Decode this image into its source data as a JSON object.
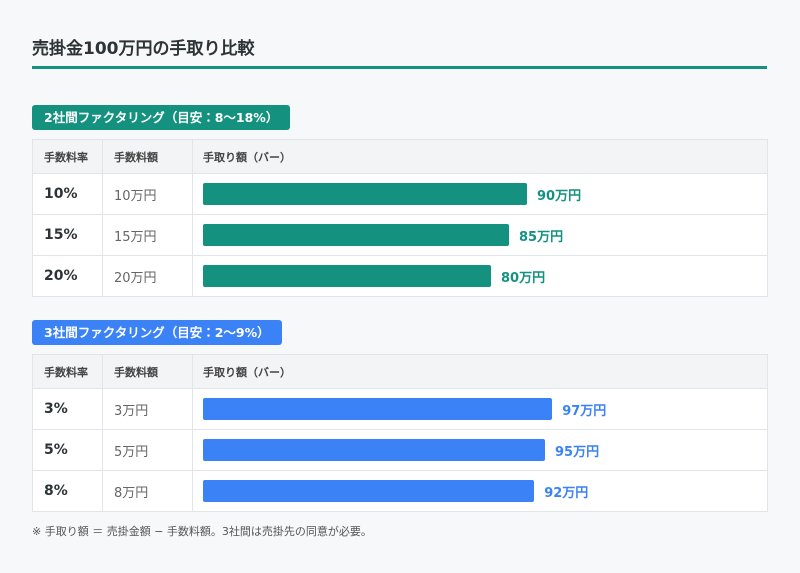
{
  "title": "売掛金100万円の手取り比較",
  "sections": [
    {
      "badge": "2社間ファクタリング（目安：8〜18%）",
      "color": "#14917f",
      "headers": [
        "手数料率",
        "手数料額",
        "手取り額（バー）"
      ],
      "rows": [
        {
          "rate": "10%",
          "fee": "10万円",
          "net": 90,
          "net_label": "90万円"
        },
        {
          "rate": "15%",
          "fee": "15万円",
          "net": 85,
          "net_label": "85万円"
        },
        {
          "rate": "20%",
          "fee": "20万円",
          "net": 80,
          "net_label": "80万円"
        }
      ]
    },
    {
      "badge": "3社間ファクタリング（目安：2〜9%）",
      "color": "#3b82f6",
      "headers": [
        "手数料率",
        "手数料額",
        "手取り額（バー）"
      ],
      "rows": [
        {
          "rate": "3%",
          "fee": "3万円",
          "net": 97,
          "net_label": "97万円"
        },
        {
          "rate": "5%",
          "fee": "5万円",
          "net": 95,
          "net_label": "95万円"
        },
        {
          "rate": "8%",
          "fee": "8万円",
          "net": 92,
          "net_label": "92万円"
        }
      ]
    }
  ],
  "note": "※ 手取り額 ＝ 売掛金額 − 手数料額。3社間は売掛先の同意が必要。"
}
